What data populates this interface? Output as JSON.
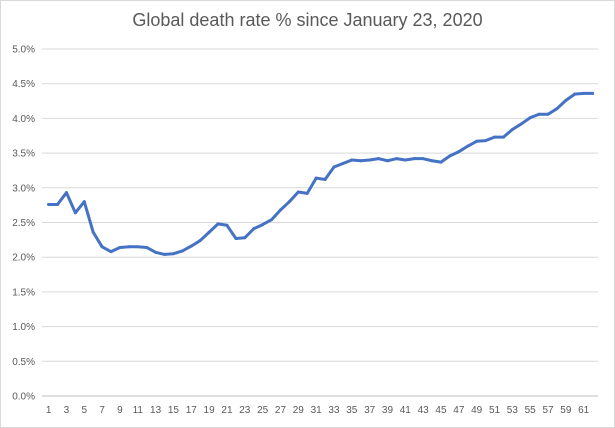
{
  "chart_data": {
    "type": "line",
    "title": "Global death rate % since January 23, 2020",
    "xlabel": "",
    "ylabel": "",
    "ylim": [
      0,
      5
    ],
    "y_ticks": [
      "0.0%",
      "0.5%",
      "1.0%",
      "1.5%",
      "2.0%",
      "2.5%",
      "3.0%",
      "3.5%",
      "4.0%",
      "4.5%",
      "5.0%"
    ],
    "x_ticks": [
      "1",
      "3",
      "5",
      "7",
      "9",
      "11",
      "13",
      "15",
      "17",
      "19",
      "21",
      "23",
      "25",
      "27",
      "29",
      "31",
      "33",
      "35",
      "37",
      "39",
      "41",
      "43",
      "45",
      "47",
      "49",
      "51",
      "53",
      "55",
      "57",
      "59",
      "61"
    ],
    "grid": true,
    "line_color": "#4472c4",
    "series": [
      {
        "x": [
          1,
          2,
          3,
          4,
          5,
          6,
          7,
          8,
          9,
          10,
          11,
          12,
          13,
          14,
          15,
          16,
          17,
          18,
          19,
          20,
          21,
          22,
          23,
          24,
          25,
          26,
          27,
          28,
          29,
          30,
          31,
          32,
          33,
          34,
          35,
          36,
          37,
          38,
          39,
          40,
          41,
          42,
          43,
          44,
          45,
          46,
          47,
          48,
          49,
          50,
          51,
          52,
          53,
          54,
          55,
          56,
          57,
          58,
          59,
          60,
          61,
          62
        ],
        "values": [
          2.76,
          2.76,
          2.93,
          2.64,
          2.8,
          2.36,
          2.15,
          2.08,
          2.14,
          2.15,
          2.15,
          2.14,
          2.07,
          2.04,
          2.05,
          2.09,
          2.16,
          2.24,
          2.36,
          2.48,
          2.46,
          2.27,
          2.28,
          2.41,
          2.47,
          2.54,
          2.68,
          2.8,
          2.94,
          2.92,
          3.14,
          3.12,
          3.3,
          3.35,
          3.4,
          3.39,
          3.4,
          3.42,
          3.39,
          3.42,
          3.4,
          3.42,
          3.42,
          3.39,
          3.37,
          3.46,
          3.52,
          3.6,
          3.67,
          3.68,
          3.73,
          3.73,
          3.84,
          3.92,
          4.01,
          4.06,
          4.06,
          4.14,
          4.26,
          4.35,
          4.36,
          4.36
        ]
      }
    ]
  }
}
